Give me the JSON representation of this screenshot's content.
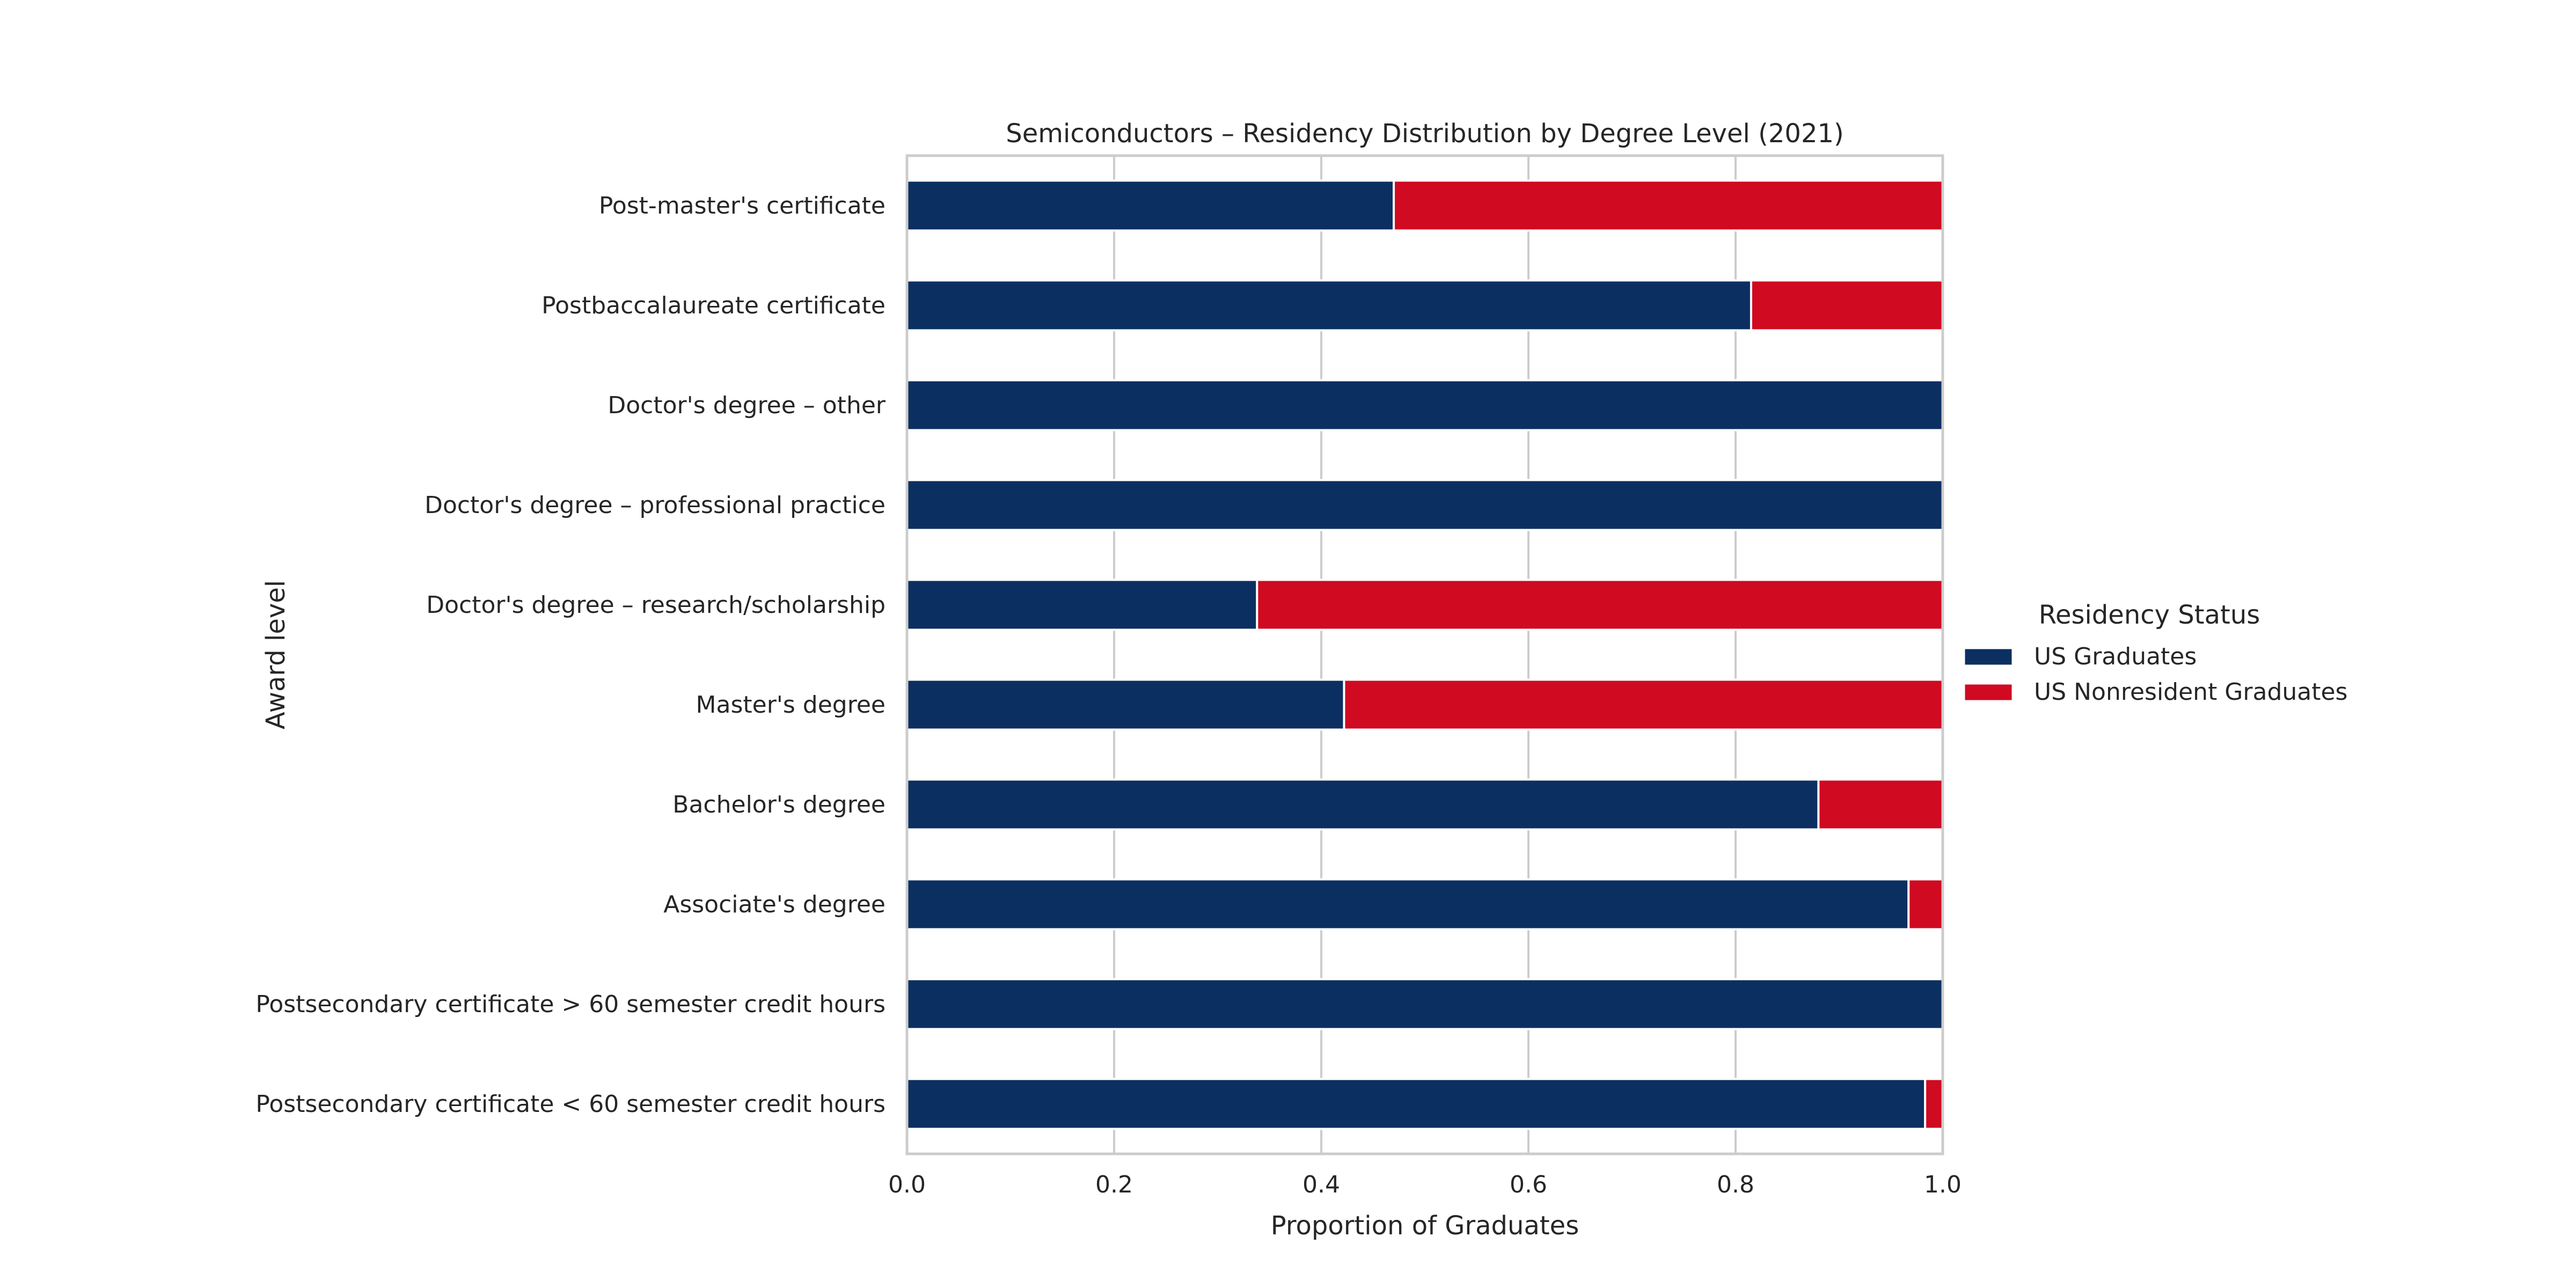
{
  "chart_data": {
    "type": "bar",
    "orientation": "horizontal",
    "stacked": true,
    "title": "Semiconductors – Residency Distribution by Degree Level (2021)",
    "xlabel": "Proportion of Graduates",
    "ylabel": "Award level",
    "xlim": [
      0.0,
      1.0
    ],
    "xticks": [
      "0.0",
      "0.2",
      "0.4",
      "0.6",
      "0.8",
      "1.0"
    ],
    "grid": true,
    "legend_title": "Residency Status",
    "legend_position": "right",
    "categories": [
      "Post-master's certificate",
      "Postbaccalaureate certificate",
      "Doctor's degree – other",
      "Doctor's degree – professional practice",
      "Doctor's degree – research/scholarship",
      "Master's degree",
      "Bachelor's degree",
      "Associate's degree",
      "Postsecondary certificate > 60 semester credit hours",
      "Postsecondary certificate < 60 semester credit hours"
    ],
    "series": [
      {
        "name": "US Graduates",
        "color": "#0c2f61",
        "values": [
          0.47,
          0.815,
          1.0,
          1.0,
          0.338,
          0.422,
          0.88,
          0.967,
          1.0,
          0.983
        ]
      },
      {
        "name": "US Nonresident Graduates",
        "color": "#cf0a21",
        "values": [
          0.53,
          0.185,
          0.0,
          0.0,
          0.662,
          0.578,
          0.12,
          0.033,
          0.0,
          0.017
        ]
      }
    ]
  }
}
